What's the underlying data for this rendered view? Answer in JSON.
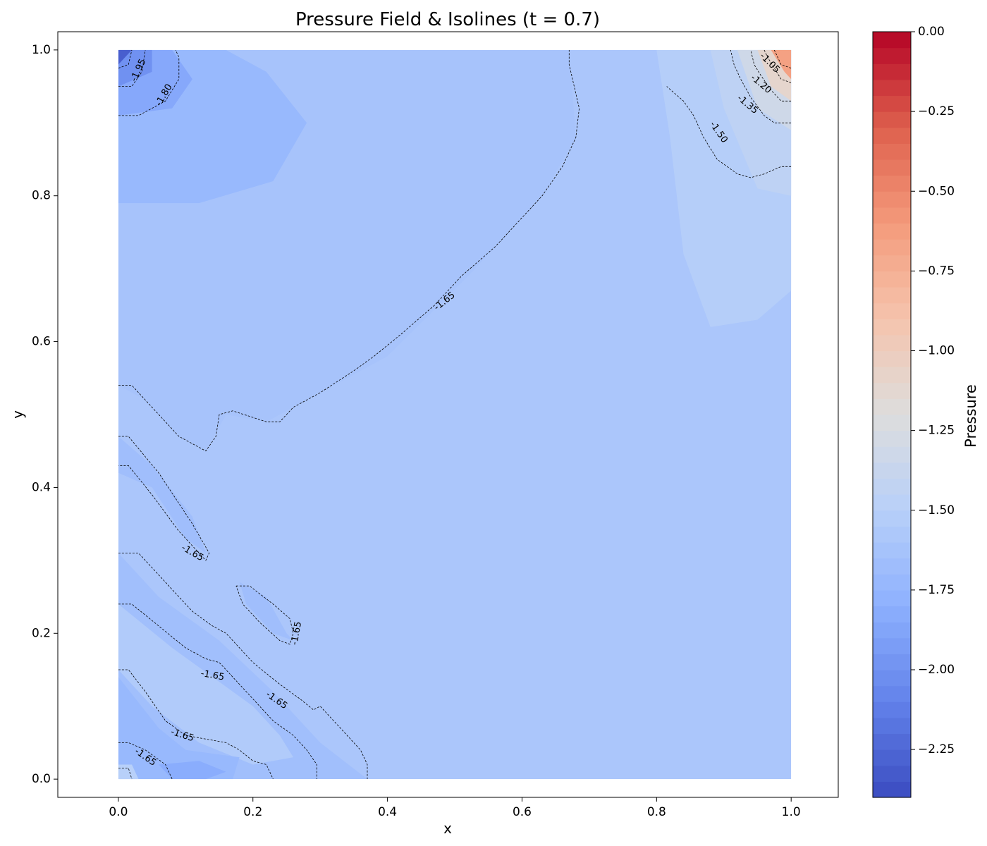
{
  "chart_data": {
    "type": "contour",
    "title": "Pressure Field & Isolines (t = 0.7)",
    "xlabel": "x",
    "ylabel": "y",
    "xlim": [
      -0.09,
      1.07
    ],
    "ylim": [
      -0.025,
      1.025
    ],
    "xticks": [
      0.0,
      0.2,
      0.4,
      0.6,
      0.8,
      1.0
    ],
    "xtick_labels": [
      "0.0",
      "0.2",
      "0.4",
      "0.6",
      "0.8",
      "1.0"
    ],
    "yticks": [
      0.0,
      0.2,
      0.4,
      0.6,
      0.8,
      1.0
    ],
    "ytick_labels": [
      "0.0",
      "0.2",
      "0.4",
      "0.6",
      "0.8",
      "1.0"
    ],
    "colormap": "coolwarm",
    "value_range": [
      -2.4,
      0.0
    ],
    "colorbar": {
      "label": "Pressure",
      "ticks": [
        0.0,
        -0.25,
        -0.5,
        -0.75,
        -1.0,
        -1.25,
        -1.5,
        -1.75,
        -2.0,
        -2.25
      ],
      "tick_labels": [
        "0.00",
        "−0.25",
        "−0.50",
        "−0.75",
        "−1.00",
        "−1.25",
        "−1.50",
        "−1.75",
        "−2.00",
        "−2.25"
      ],
      "levels": 48
    },
    "field_regions": [
      {
        "level": -1.62,
        "points": [
          [
            0.0,
            0.54
          ],
          [
            0.04,
            0.52
          ],
          [
            0.09,
            0.47
          ],
          [
            0.13,
            0.45
          ],
          [
            0.16,
            0.5
          ],
          [
            0.22,
            0.49
          ],
          [
            0.3,
            0.53
          ],
          [
            0.4,
            0.58
          ],
          [
            0.52,
            0.69
          ],
          [
            0.63,
            0.8
          ],
          [
            0.68,
            0.88
          ],
          [
            0.67,
            1.0
          ],
          [
            0.0,
            1.0
          ]
        ]
      },
      {
        "level": -1.72,
        "points": [
          [
            0.0,
            1.0
          ],
          [
            0.0,
            0.79
          ],
          [
            0.12,
            0.79
          ],
          [
            0.23,
            0.82
          ],
          [
            0.28,
            0.9
          ],
          [
            0.22,
            0.97
          ],
          [
            0.16,
            1.0
          ]
        ]
      },
      {
        "level": -1.85,
        "points": [
          [
            0.0,
            1.0
          ],
          [
            0.0,
            0.91
          ],
          [
            0.08,
            0.92
          ],
          [
            0.11,
            0.96
          ],
          [
            0.08,
            1.0
          ]
        ]
      },
      {
        "level": -2.0,
        "points": [
          [
            0.0,
            1.0
          ],
          [
            0.0,
            0.95
          ],
          [
            0.05,
            0.97
          ],
          [
            0.05,
            1.0
          ]
        ]
      },
      {
        "level": -2.3,
        "points": [
          [
            0.0,
            1.0
          ],
          [
            0.0,
            0.98
          ],
          [
            0.02,
            1.0
          ]
        ]
      },
      {
        "level": -1.52,
        "points": [
          [
            1.0,
            1.0
          ],
          [
            0.8,
            1.0
          ],
          [
            0.82,
            0.88
          ],
          [
            0.84,
            0.72
          ],
          [
            0.88,
            0.62
          ],
          [
            0.95,
            0.63
          ],
          [
            1.0,
            0.67
          ]
        ]
      },
      {
        "level": -1.45,
        "points": [
          [
            1.0,
            1.0
          ],
          [
            0.88,
            1.0
          ],
          [
            0.9,
            0.92
          ],
          [
            0.95,
            0.81
          ],
          [
            1.0,
            0.8
          ]
        ]
      },
      {
        "level": -1.32,
        "points": [
          [
            1.0,
            1.0
          ],
          [
            0.92,
            1.0
          ],
          [
            0.95,
            0.92
          ],
          [
            1.0,
            0.89
          ]
        ]
      },
      {
        "level": -1.1,
        "points": [
          [
            1.0,
            1.0
          ],
          [
            0.95,
            1.0
          ],
          [
            0.97,
            0.95
          ],
          [
            1.0,
            0.93
          ]
        ]
      },
      {
        "level": -0.65,
        "points": [
          [
            1.0,
            1.0
          ],
          [
            0.97,
            1.0
          ],
          [
            0.99,
            0.97
          ],
          [
            1.0,
            0.96
          ]
        ]
      },
      {
        "level": -1.67,
        "points": [
          [
            0.0,
            0.47
          ],
          [
            0.05,
            0.43
          ],
          [
            0.11,
            0.36
          ],
          [
            0.13,
            0.31
          ],
          [
            0.1,
            0.33
          ],
          [
            0.05,
            0.4
          ],
          [
            0.0,
            0.42
          ]
        ]
      },
      {
        "level": -1.67,
        "points": [
          [
            0.18,
            0.27
          ],
          [
            0.22,
            0.25
          ],
          [
            0.25,
            0.2
          ],
          [
            0.26,
            0.19
          ],
          [
            0.23,
            0.2
          ],
          [
            0.19,
            0.24
          ]
        ]
      },
      {
        "level": -1.66,
        "points": [
          [
            0.0,
            0.31
          ],
          [
            0.06,
            0.25
          ],
          [
            0.15,
            0.19
          ],
          [
            0.23,
            0.12
          ],
          [
            0.3,
            0.05
          ],
          [
            0.37,
            0.0
          ],
          [
            0.0,
            0.0
          ]
        ]
      },
      {
        "level": -1.55,
        "points": [
          [
            0.0,
            0.24
          ],
          [
            0.08,
            0.18
          ],
          [
            0.14,
            0.14
          ],
          [
            0.2,
            0.1
          ],
          [
            0.24,
            0.06
          ],
          [
            0.26,
            0.03
          ],
          [
            0.2,
            0.02
          ],
          [
            0.12,
            0.05
          ],
          [
            0.05,
            0.1
          ],
          [
            0.0,
            0.15
          ]
        ]
      },
      {
        "level": -1.72,
        "points": [
          [
            0.0,
            0.14
          ],
          [
            0.06,
            0.07
          ],
          [
            0.1,
            0.04
          ],
          [
            0.18,
            0.03
          ],
          [
            0.17,
            0.0
          ],
          [
            0.0,
            0.0
          ]
        ]
      },
      {
        "level": -1.82,
        "points": [
          [
            0.06,
            0.02
          ],
          [
            0.12,
            0.025
          ],
          [
            0.16,
            0.01
          ],
          [
            0.13,
            0.0
          ],
          [
            0.08,
            0.0
          ]
        ]
      },
      {
        "level": -1.5,
        "points": [
          [
            0.0,
            0.02
          ],
          [
            0.02,
            0.02
          ],
          [
            0.03,
            0.0
          ],
          [
            0.0,
            0.0
          ]
        ]
      }
    ],
    "isolines": [
      {
        "level": -1.65,
        "points": [
          [
            0.0,
            0.54
          ],
          [
            0.02,
            0.54
          ],
          [
            0.05,
            0.51
          ],
          [
            0.09,
            0.47
          ],
          [
            0.13,
            0.45
          ],
          [
            0.145,
            0.47
          ],
          [
            0.15,
            0.5
          ],
          [
            0.17,
            0.505
          ],
          [
            0.22,
            0.49
          ],
          [
            0.24,
            0.49
          ],
          [
            0.26,
            0.51
          ],
          [
            0.3,
            0.53
          ],
          [
            0.35,
            0.56
          ],
          [
            0.38,
            0.58
          ],
          [
            0.42,
            0.61
          ],
          [
            0.47,
            0.65
          ],
          [
            0.51,
            0.69
          ],
          [
            0.56,
            0.73
          ],
          [
            0.63,
            0.8
          ],
          [
            0.66,
            0.84
          ],
          [
            0.68,
            0.88
          ],
          [
            0.685,
            0.92
          ],
          [
            0.67,
            0.98
          ],
          [
            0.67,
            1.0
          ]
        ]
      },
      {
        "level": -1.65,
        "points": [
          [
            0.0,
            0.47
          ],
          [
            0.015,
            0.47
          ],
          [
            0.06,
            0.42
          ],
          [
            0.11,
            0.35
          ],
          [
            0.135,
            0.31
          ],
          [
            0.13,
            0.3
          ],
          [
            0.09,
            0.34
          ],
          [
            0.05,
            0.39
          ],
          [
            0.015,
            0.43
          ],
          [
            0.0,
            0.43
          ]
        ]
      },
      {
        "level": -1.65,
        "points": [
          [
            0.175,
            0.265
          ],
          [
            0.195,
            0.265
          ],
          [
            0.23,
            0.24
          ],
          [
            0.255,
            0.22
          ],
          [
            0.26,
            0.2
          ],
          [
            0.255,
            0.185
          ],
          [
            0.24,
            0.19
          ],
          [
            0.21,
            0.215
          ],
          [
            0.185,
            0.24
          ],
          [
            0.175,
            0.265
          ]
        ]
      },
      {
        "level": -1.65,
        "points": [
          [
            0.0,
            0.31
          ],
          [
            0.03,
            0.31
          ],
          [
            0.07,
            0.27
          ],
          [
            0.11,
            0.23
          ],
          [
            0.14,
            0.21
          ],
          [
            0.16,
            0.2
          ],
          [
            0.2,
            0.16
          ],
          [
            0.24,
            0.13
          ],
          [
            0.27,
            0.11
          ],
          [
            0.29,
            0.095
          ],
          [
            0.3,
            0.1
          ],
          [
            0.33,
            0.07
          ],
          [
            0.36,
            0.04
          ],
          [
            0.37,
            0.02
          ],
          [
            0.37,
            0.0
          ]
        ]
      },
      {
        "level": -1.65,
        "points": [
          [
            0.0,
            0.24
          ],
          [
            0.02,
            0.24
          ],
          [
            0.06,
            0.21
          ],
          [
            0.1,
            0.18
          ],
          [
            0.13,
            0.165
          ],
          [
            0.15,
            0.16
          ],
          [
            0.17,
            0.14
          ],
          [
            0.2,
            0.11
          ],
          [
            0.23,
            0.08
          ],
          [
            0.26,
            0.06
          ],
          [
            0.28,
            0.04
          ],
          [
            0.295,
            0.02
          ],
          [
            0.295,
            0.0
          ]
        ]
      },
      {
        "level": -1.65,
        "points": [
          [
            0.0,
            0.15
          ],
          [
            0.015,
            0.15
          ],
          [
            0.04,
            0.12
          ],
          [
            0.07,
            0.08
          ],
          [
            0.1,
            0.06
          ],
          [
            0.13,
            0.055
          ],
          [
            0.16,
            0.05
          ],
          [
            0.18,
            0.04
          ],
          [
            0.2,
            0.025
          ],
          [
            0.22,
            0.02
          ],
          [
            0.23,
            0.0
          ]
        ]
      },
      {
        "level": -1.65,
        "points": [
          [
            0.0,
            0.05
          ],
          [
            0.015,
            0.05
          ],
          [
            0.04,
            0.04
          ],
          [
            0.07,
            0.02
          ],
          [
            0.08,
            0.0
          ]
        ]
      },
      {
        "level": -1.65,
        "points": [
          [
            0.0,
            0.015
          ],
          [
            0.015,
            0.015
          ],
          [
            0.02,
            0.0
          ]
        ]
      },
      {
        "level": -1.8,
        "points": [
          [
            0.0,
            0.91
          ],
          [
            0.03,
            0.91
          ],
          [
            0.07,
            0.93
          ],
          [
            0.09,
            0.96
          ],
          [
            0.09,
            0.99
          ],
          [
            0.085,
            1.0
          ]
        ]
      },
      {
        "level": -1.95,
        "points": [
          [
            0.0,
            0.95
          ],
          [
            0.02,
            0.95
          ],
          [
            0.035,
            0.97
          ],
          [
            0.04,
            1.0
          ]
        ]
      },
      {
        "level": -2.1,
        "points": [
          [
            0.0,
            0.975
          ],
          [
            0.015,
            0.98
          ],
          [
            0.02,
            1.0
          ]
        ]
      },
      {
        "level": -1.5,
        "points": [
          [
            1.0,
            0.84
          ],
          [
            0.985,
            0.84
          ],
          [
            0.96,
            0.83
          ],
          [
            0.94,
            0.825
          ],
          [
            0.92,
            0.83
          ],
          [
            0.89,
            0.85
          ],
          [
            0.87,
            0.88
          ],
          [
            0.855,
            0.91
          ],
          [
            0.84,
            0.93
          ],
          [
            0.815,
            0.95
          ]
        ]
      },
      {
        "level": -1.35,
        "points": [
          [
            1.0,
            0.9
          ],
          [
            0.975,
            0.9
          ],
          [
            0.96,
            0.91
          ],
          [
            0.94,
            0.935
          ],
          [
            0.925,
            0.96
          ],
          [
            0.915,
            0.98
          ],
          [
            0.91,
            1.0
          ]
        ]
      },
      {
        "level": -1.2,
        "points": [
          [
            1.0,
            0.93
          ],
          [
            0.985,
            0.93
          ],
          [
            0.97,
            0.945
          ],
          [
            0.955,
            0.965
          ],
          [
            0.945,
            0.98
          ],
          [
            0.94,
            1.0
          ]
        ]
      },
      {
        "level": -1.05,
        "points": [
          [
            1.0,
            0.955
          ],
          [
            0.985,
            0.96
          ],
          [
            0.975,
            0.975
          ],
          [
            0.965,
            0.99
          ],
          [
            0.96,
            1.0
          ]
        ]
      },
      {
        "level": -0.9,
        "points": [
          [
            1.0,
            0.975
          ],
          [
            0.985,
            0.98
          ],
          [
            0.98,
            0.99
          ],
          [
            0.975,
            1.0
          ]
        ]
      }
    ],
    "isoline_labels": [
      {
        "text": "-1.65",
        "x": 0.485,
        "y": 0.655,
        "angle": -38
      },
      {
        "text": "-1.65",
        "x": 0.11,
        "y": 0.31,
        "angle": 30
      },
      {
        "text": "-1.65",
        "x": 0.265,
        "y": 0.2,
        "angle": -80
      },
      {
        "text": "-1.65",
        "x": 0.14,
        "y": 0.142,
        "angle": 10
      },
      {
        "text": "-1.65",
        "x": 0.235,
        "y": 0.108,
        "angle": 35
      },
      {
        "text": "-1.65",
        "x": 0.095,
        "y": 0.06,
        "angle": 18
      },
      {
        "text": "-1.65",
        "x": 0.04,
        "y": 0.03,
        "angle": 35
      },
      {
        "text": "-1.80",
        "x": 0.068,
        "y": 0.938,
        "angle": -60
      },
      {
        "text": "-1.95",
        "x": 0.03,
        "y": 0.972,
        "angle": -65
      },
      {
        "text": "-1.05",
        "x": 0.968,
        "y": 0.982,
        "angle": 45
      },
      {
        "text": "-1.20",
        "x": 0.955,
        "y": 0.953,
        "angle": 40
      },
      {
        "text": "-1.35",
        "x": 0.935,
        "y": 0.925,
        "angle": 40
      },
      {
        "text": "-1.50",
        "x": 0.892,
        "y": 0.887,
        "angle": 55
      }
    ]
  }
}
